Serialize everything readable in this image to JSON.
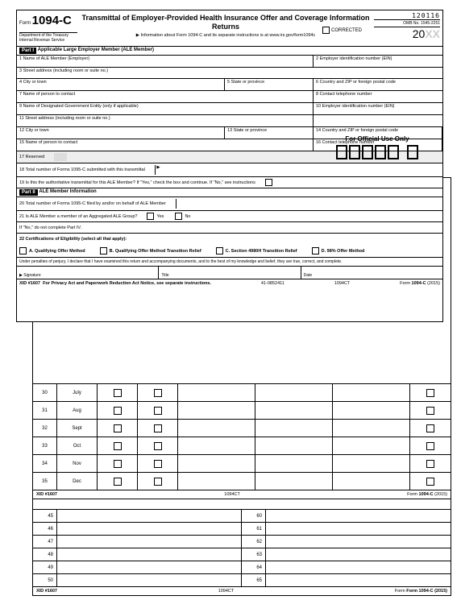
{
  "form": {
    "prefix": "Form",
    "number": "1094-C",
    "dept": "Department of the Treasury\nInternal Revenue Service",
    "title": "Transmittal of Employer-Provided Health Insurance Offer and Coverage Information Returns",
    "info_arrow": "▶ Information about Form 1094-C and its separate instructions is at www.irs.gov/form1094c",
    "corrected": "CORRECTED",
    "topcode": "120116",
    "omb": "OMB No. 1545-2251",
    "year_prefix": "20",
    "year_xx": "XX"
  },
  "part1": {
    "label": "Part I",
    "heading": "Applicable Large Employer Member (ALE Member)",
    "f1": "1  Name of ALE Member (Employer)",
    "f2": "2 Employer identification number (EIN)",
    "f3": "3  Street address (including room or suite no.)",
    "f4": "4  City or town",
    "f5": "5 State or province",
    "f6": "6 Country and ZIP or foreign postal code",
    "f7": "7  Name of person to contact",
    "f8": "8 Contact telephone number",
    "f9": "9  Name of Designated Government Entity (only if applicable)",
    "f10": "10 Employer identification number (EIN)",
    "f11": "11  Street address (including room or suite no.)",
    "f12": "12  City or town",
    "f13": "13 State or province",
    "f14": "14 Country and ZIP or foreign postal code",
    "f15": "15  Name of person to contact",
    "f16": "16 Contact telephone number",
    "f17": "17  Reserved",
    "f18": "18  Total number of Forms 1095-C submitted with this transmittal",
    "f19": "19  Is this the authoritative transmittal for this ALE Member? If \"Yes,\" check the box and continue. If \"No,\" see instructions"
  },
  "official": "For Official Use Only",
  "part2": {
    "label": "Part II",
    "heading": "ALE Member Information",
    "f20": "20  Total number of Forms 1095-C filed by and/or on behalf of ALE Member",
    "f21": "21  Is ALE Member a member of an Aggregated ALE Group?",
    "f21b": "If \"No,\" do not complete Part IV.",
    "f22": "22  Certifications of Eligibility (select all that apply):",
    "yes": "Yes",
    "no": "No",
    "certA": "A. Qualifying Offer Method",
    "certB": "B. Qualifying Offer Method Transition Relief",
    "certC": "C. Section 4980H Transition Relief",
    "certD": "D. 98% Offer Method"
  },
  "perjury": "Under penalties of perjury, I declare that I have examined this return and accompanying documents, and to the best of my knowledge and belief, they are true, correct, and complete.",
  "sig": {
    "s": "Signature",
    "t": "Title",
    "d": "Date"
  },
  "footer1": {
    "xid": "XID #1607",
    "act": "For Privacy Act and Paperwork Reduction Act Notice, see separate instructions.",
    "code1": "41-0852411",
    "code2": "1094CT",
    "form": "Form 1094-C (2015)"
  },
  "page2": {
    "rows": [
      {
        "n": "30",
        "m": "July"
      },
      {
        "n": "31",
        "m": "Aug"
      },
      {
        "n": "32",
        "m": "Sept"
      },
      {
        "n": "33",
        "m": "Oct"
      },
      {
        "n": "34",
        "m": "Nov"
      },
      {
        "n": "35",
        "m": "Dec"
      }
    ],
    "xid": "XID #1607",
    "code": "1094CT",
    "form": "Form 1094-C (2015)"
  },
  "page3": {
    "left": [
      "45",
      "46",
      "47",
      "48",
      "49",
      "50"
    ],
    "right": [
      "60",
      "61",
      "62",
      "63",
      "64",
      "65"
    ],
    "xid": "XID #1607",
    "code": "1094CT",
    "form": "Form 1094-C (2015)"
  }
}
